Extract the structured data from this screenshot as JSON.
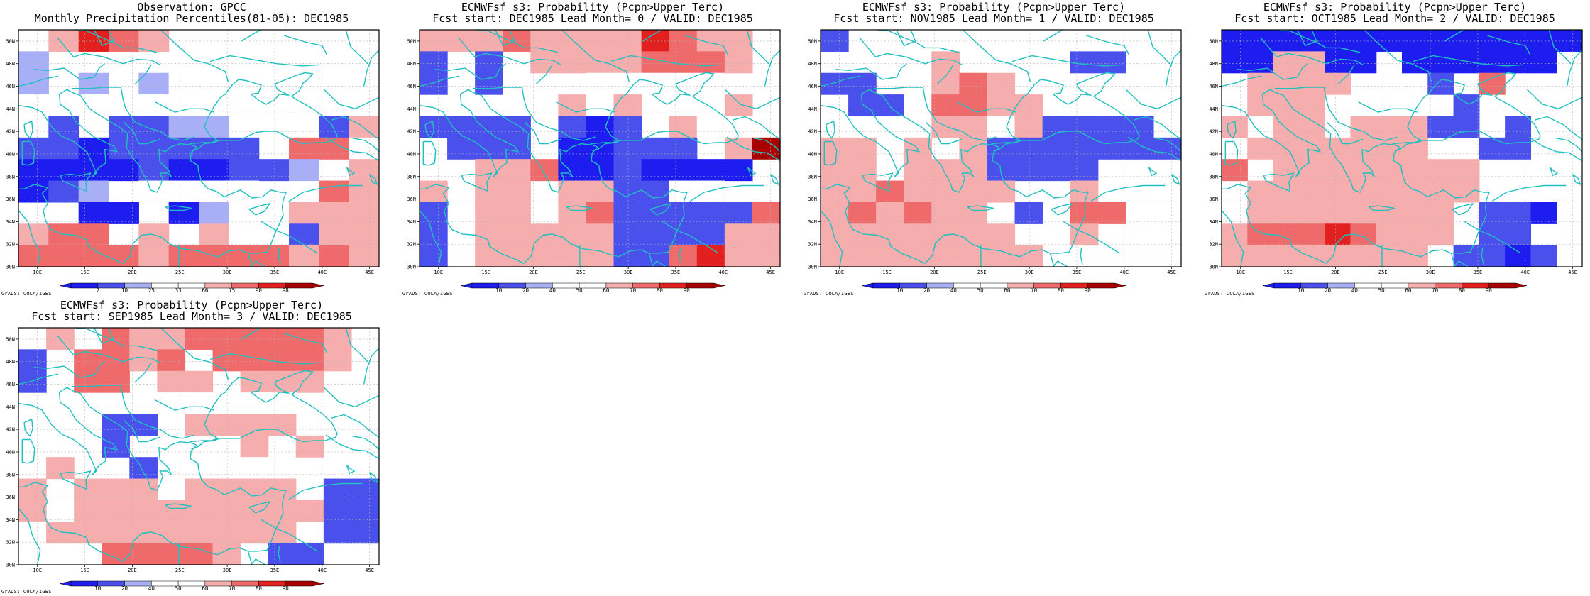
{
  "colors": {
    "b3": "#1d1df0",
    "b2": "#4a50ec",
    "b1": "#a9aff7",
    "w": "#ffffff",
    "r1": "#f6adad",
    "r2": "#ef6b6b",
    "r3": "#e32020",
    "r4": "#a80000",
    "coast": "#20c0c0",
    "grid": "#b4b4b4"
  },
  "map_extent": {
    "lon": [
      8,
      46
    ],
    "lat": [
      30,
      51
    ]
  },
  "lat_ticks": [
    "50N",
    "48N",
    "46N",
    "44N",
    "42N",
    "40N",
    "38N",
    "36N",
    "34N",
    "32N",
    "30N"
  ],
  "lon_ticks": [
    "10E",
    "15E",
    "20E",
    "25E",
    "30E",
    "35E",
    "40E",
    "45E"
  ],
  "credit": "GrADS: COLA/IGES",
  "panels": [
    {
      "title1": "Observation: GPCC",
      "title2": "Monthly Precipitation Percentiles(81-05): DEC1985",
      "colorbar": [
        "2",
        "10",
        "25",
        "33",
        "66",
        "75",
        "90",
        "98"
      ],
      "grid": [
        "..r1r3r2r1.......b1b1..",
        "b1.......................",
        "b1..b1..b1.b1b1b1b1b2b2",
        ".b2b2..b2b2b2..b1b2.....",
        "..b2..b2b2b1b1...r1.b2r1",
        "b2b2b3b2b2b2b2b2..r2r2.r1",
        "b3b3b3b3b2b3b3b2b2b1..r1",
        "b3b2b1...b2b1b1.....r2r1",
        "....b3b3..b3b1....r1r1r1",
        "r1r2r2..r1..r1....b2r1r1",
        "r2r2r2r2r1r2r2r2r2r1r2r1"
      ]
    },
    {
      "title1": "ECMWFsf s3: Probability (Pcpn>Upper Terc)",
      "title2": "Fcst start: DEC1985  Lead Month= 0 / VALID: DEC1985",
      "colorbar": [
        "10",
        "20",
        "40",
        "50",
        "60",
        "70",
        "80",
        "90"
      ],
      "grid": [
        "r1r1r1r2r1r1r1r1r3r2r1r1",
        "b2..b2..r1r1r1r1r2r2r2r1",
        "b2..b2.......r1..r2r2r1",
        "..........r1..r1......r1",
        "b2b2b2b2..b2b3b2..r1.r1r3",
        "..b2b2b2..b3b3b2b2b2..r1r4",
        "....r1r1r2b3b3b2b3b3b3b3",
        "r1..r1r1..r1r1b2b2.r2..",
        "b2..r1r1..r1r2b2b2b2b2b2r2",
        "b2..r1r1r1r1r1b2b2b2b2r1r1",
        "b2..r1r1r1r1r1b2b2r2r3r1r1"
      ]
    },
    {
      "title1": "ECMWFsf s3: Probability (Pcpn>Upper Terc)",
      "title2": "Fcst start: NOV1985  Lead Month= 1 / VALID: DEC1985",
      "colorbar": [
        "10",
        "20",
        "40",
        "50",
        "60",
        "70",
        "80",
        "90"
      ],
      "grid": [
        "b2.....................",
        "........r1...b2...b2b2",
        "b2b2....r1r2r1.......",
        "..b2b2..r2r2r1r1........",
        "........r1r1..r1b2b2b2b2",
        "r1r1..r1..r1b2b2b2b2b2b2b2",
        "r1r1..r1r1r1b2b2b2b2......",
        "r1r1r2r1r1r1r1....r1..",
        "r1r2r1r2r1r1..b2..r2r2.",
        "r1r1r1r1r1r1r1....r1..",
        "r1r1r1r1r1r1r1r1.....b2"
      ]
    },
    {
      "title1": "ECMWFsf s3: Probability (Pcpn>Upper Terc)",
      "title2": "Fcst start: OCT1985  Lead Month= 2 / VALID: DEC1985",
      "colorbar": [
        "10",
        "20",
        "40",
        "50",
        "60",
        "70",
        "80",
        "90"
      ],
      "grid": [
        "b3b3b3b3b3b3b3b3b3b3b3b3b3b3",
        "b3b3r1r1b3b3..b3b3b3b3b3b3",
        "..r1r1r1r1......b2..r2",
        "..r1r1r1..........b2.",
        "r1..r1r1..r1r1r1b2b2..b2",
        "..r1r1r1r1r1r1r1....b2b2",
        "r2..r1r1r1r1r1r1r1r1...",
        "..r1r1r1r1r1r1r1r1r1....",
        "..r1r1r1r1r1r1r1r1..b2b2b3",
        "r1r2r2r2r3r2r1r1r1..b2b2",
        "r1r1r1r1r1r1r1r1..b2b2b3b2"
      ]
    },
    {
      "title1": "ECMWFsf s3: Probability (Pcpn>Upper Terc)",
      "title2": "Fcst start: SEP1985  Lead Month= 3 / VALID: DEC1985",
      "colorbar": [
        "10",
        "20",
        "40",
        "50",
        "60",
        "70",
        "80",
        "90"
      ],
      "grid": [
        "..r1..r2r1r1r2r2r2r2r2r1..",
        "b2..r2r2r1r2..r2r2r2r2r1..",
        "b2..r2r2..r1r1..r1r1r1..",
        "...........r1r1r1r1..",
        "......b2b2..r1r1r1r1..",
        "......b2........r1..r1.",
        "..r1....b2.......r1..",
        "r1..r1r1r1..r1r1r1r1..b2b2",
        "r1..r1r1r1r1r1r1r1r1r1b2b2",
        "..r1r1r1r1r1r1r1r1r1..b2b2",
        "......r2r2r2r2r1..b2b2.."
      ]
    }
  ]
}
